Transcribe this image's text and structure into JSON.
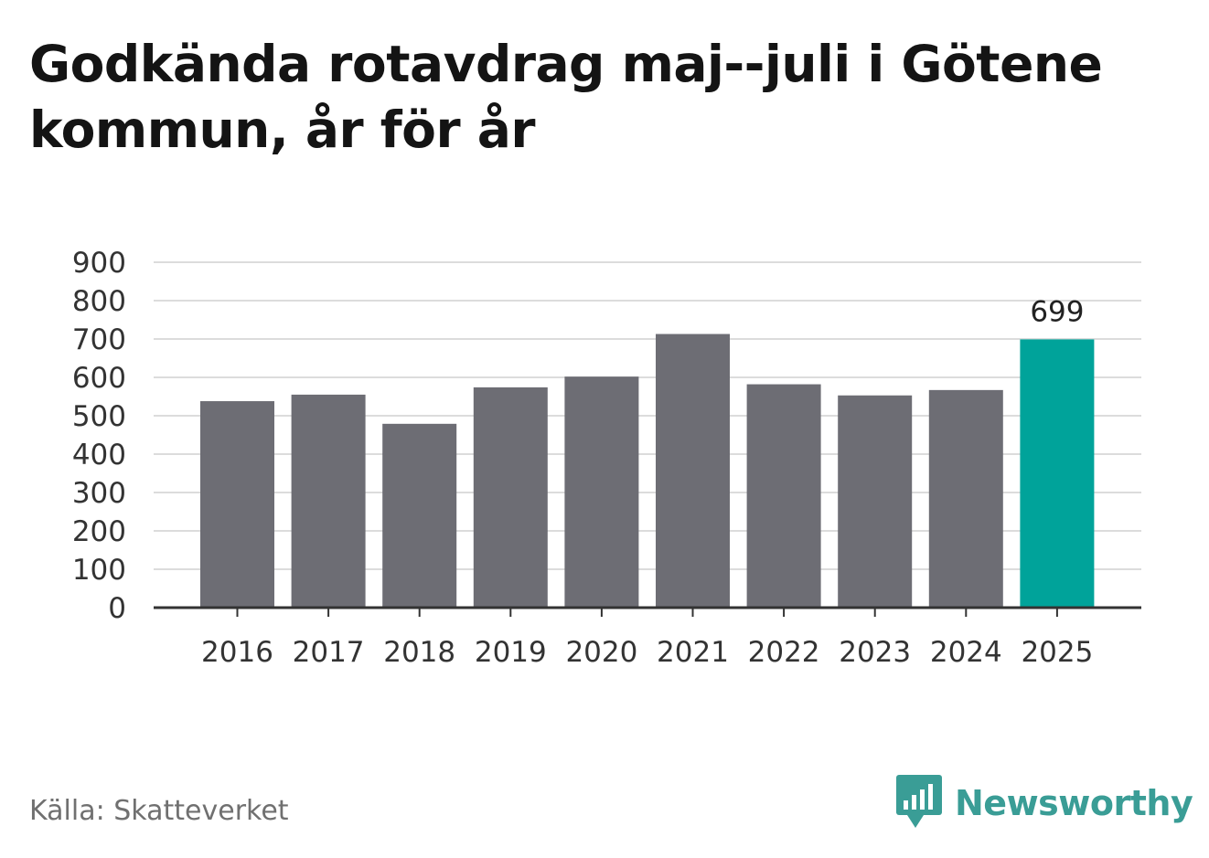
{
  "title": "Godkända rotavdrag maj--juli i Götene kommun, år för år",
  "source": "Källa: Skatteverket",
  "brand": {
    "name": "Newsworthy",
    "icon": "newsworthy-logo-icon",
    "color": "#3a9d96"
  },
  "chart_data": {
    "type": "bar",
    "title": "Godkända rotavdrag maj--juli i Götene kommun, år för år",
    "xlabel": "",
    "ylabel": "",
    "categories": [
      "2016",
      "2017",
      "2018",
      "2019",
      "2020",
      "2021",
      "2022",
      "2023",
      "2024",
      "2025"
    ],
    "values": [
      538,
      555,
      479,
      574,
      602,
      713,
      582,
      553,
      567,
      699
    ],
    "ylim": [
      0,
      900
    ],
    "yticks": [
      0,
      100,
      200,
      300,
      400,
      500,
      600,
      700,
      800,
      900
    ],
    "grid": true,
    "data_labels": [
      {
        "category": "2025",
        "text": "699"
      }
    ],
    "colors": {
      "default": "#6d6d74",
      "highlight": "#00a39a",
      "highlight_category": "2025"
    }
  }
}
